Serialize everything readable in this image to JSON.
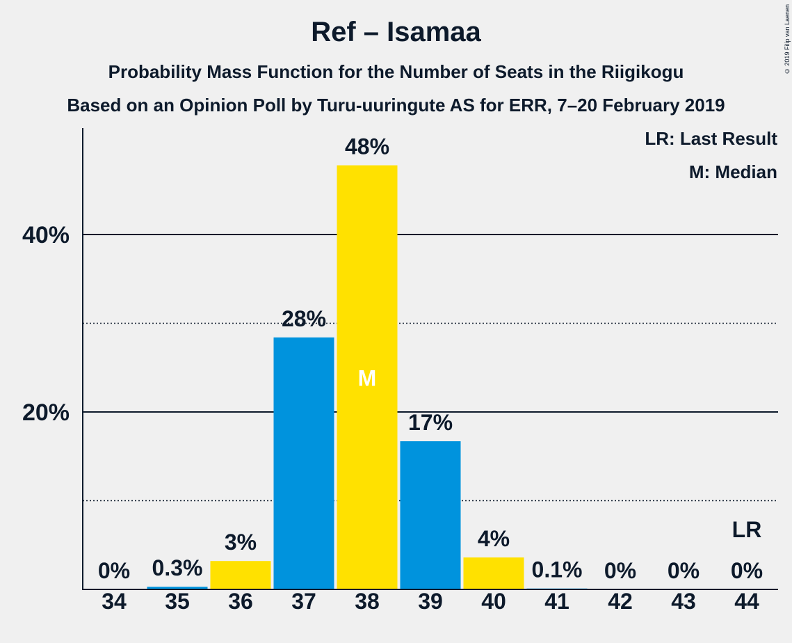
{
  "chart_data": {
    "type": "bar",
    "title": "Ref – Isamaa",
    "subtitle": "Probability Mass Function for the Number of Seats in the Riigikogu",
    "subtitle2": "Based on an Opinion Poll by Turu-uuringute AS for ERR, 7–20 February 2019",
    "copyright": "© 2019 Filip van Laenen",
    "legend": [
      "LR: Last Result",
      "M: Median"
    ],
    "legend_placement": "top-right",
    "categories": [
      "34",
      "35",
      "36",
      "37",
      "38",
      "39",
      "40",
      "41",
      "42",
      "43",
      "44"
    ],
    "values": [
      0,
      0.3,
      3.2,
      28.4,
      47.8,
      16.7,
      3.6,
      0.1,
      0,
      0,
      0
    ],
    "data_labels": [
      "0%",
      "0.3%",
      "3%",
      "28%",
      "48%",
      "17%",
      "4%",
      "0.1%",
      "0%",
      "0%",
      "0%"
    ],
    "bar_colors": [
      "#0093dd",
      "#0093dd",
      "#ffe100",
      "#0093dd",
      "#ffe100",
      "#0093dd",
      "#ffe100",
      "#0093dd",
      "#ffe100",
      "#0093dd",
      "#ffe100"
    ],
    "median_category": "38",
    "median_marker": "M",
    "last_result_category": "44",
    "last_result_marker": "LR",
    "ylim": [
      0,
      52
    ],
    "major_ticks": [
      20,
      40
    ],
    "major_tick_labels": [
      "20%",
      "40%"
    ],
    "minor_gridlines": [
      10,
      30
    ],
    "colors": {
      "blue": "#0093dd",
      "yellow": "#ffe100",
      "text": "#0d1a2b",
      "background": "#f0f0f0"
    }
  }
}
